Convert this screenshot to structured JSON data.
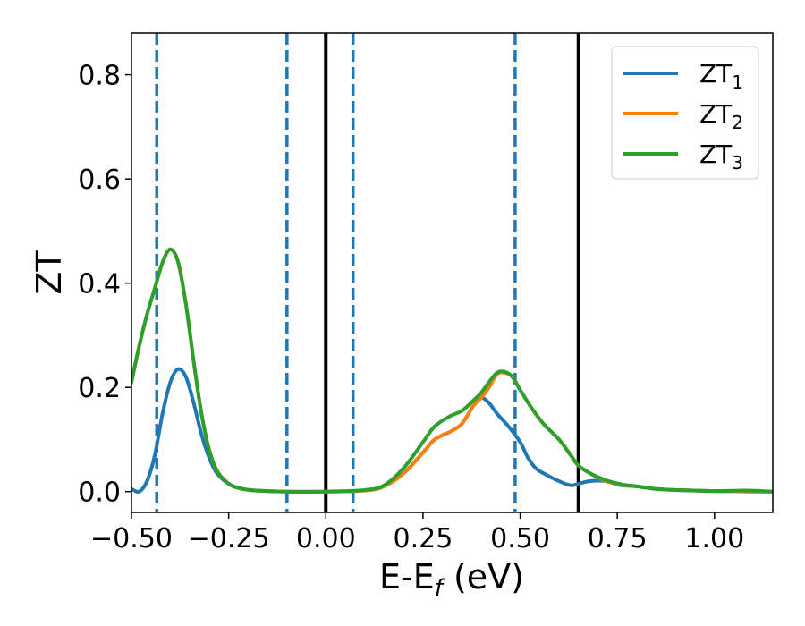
{
  "chart_data": {
    "type": "line",
    "title": "",
    "xlabel": {
      "main": "E-E",
      "sub": "f",
      "unit": " (eV)"
    },
    "ylabel": "ZT",
    "xlim": [
      -0.5,
      1.15
    ],
    "ylim": [
      -0.04,
      0.88
    ],
    "xticks": [
      -0.5,
      -0.25,
      0.0,
      0.25,
      0.5,
      0.75,
      1.0
    ],
    "xtick_labels": [
      "−0.50",
      "−0.25",
      "0.00",
      "0.25",
      "0.50",
      "0.75",
      "1.00"
    ],
    "yticks": [
      0.0,
      0.2,
      0.4,
      0.6,
      0.8
    ],
    "ytick_labels": [
      "0.0",
      "0.2",
      "0.4",
      "0.6",
      "0.8"
    ],
    "grid": false,
    "legend_position": "top-right",
    "vlines": [
      {
        "x": -0.435,
        "style": "dashed",
        "color": "#1f77b4"
      },
      {
        "x": -0.1,
        "style": "dashed",
        "color": "#1f77b4"
      },
      {
        "x": 0.0,
        "style": "solid",
        "color": "#000000"
      },
      {
        "x": 0.07,
        "style": "dashed",
        "color": "#1f77b4"
      },
      {
        "x": 0.487,
        "style": "dashed",
        "color": "#1f77b4"
      },
      {
        "x": 0.65,
        "style": "solid",
        "color": "#000000"
      }
    ],
    "series": [
      {
        "name": "ZT",
        "name_sub": "1",
        "color": "#1f77b4",
        "points": [
          [
            -0.5,
            0.005
          ],
          [
            -0.48,
            0.0
          ],
          [
            -0.46,
            0.02
          ],
          [
            -0.44,
            0.07
          ],
          [
            -0.42,
            0.15
          ],
          [
            -0.4,
            0.21
          ],
          [
            -0.38,
            0.235
          ],
          [
            -0.36,
            0.22
          ],
          [
            -0.34,
            0.17
          ],
          [
            -0.32,
            0.11
          ],
          [
            -0.3,
            0.065
          ],
          [
            -0.28,
            0.035
          ],
          [
            -0.25,
            0.015
          ],
          [
            -0.22,
            0.006
          ],
          [
            -0.18,
            0.002
          ],
          [
            -0.1,
            0.0
          ],
          [
            0.0,
            0.0
          ],
          [
            0.1,
            0.002
          ],
          [
            0.15,
            0.01
          ],
          [
            0.2,
            0.035
          ],
          [
            0.25,
            0.075
          ],
          [
            0.28,
            0.1
          ],
          [
            0.32,
            0.115
          ],
          [
            0.35,
            0.13
          ],
          [
            0.38,
            0.165
          ],
          [
            0.4,
            0.18
          ],
          [
            0.42,
            0.17
          ],
          [
            0.44,
            0.15
          ],
          [
            0.47,
            0.125
          ],
          [
            0.5,
            0.095
          ],
          [
            0.52,
            0.065
          ],
          [
            0.54,
            0.045
          ],
          [
            0.56,
            0.035
          ],
          [
            0.6,
            0.02
          ],
          [
            0.63,
            0.012
          ],
          [
            0.65,
            0.015
          ],
          [
            0.68,
            0.02
          ],
          [
            0.72,
            0.02
          ],
          [
            0.76,
            0.012
          ],
          [
            0.8,
            0.01
          ],
          [
            0.85,
            0.005
          ],
          [
            0.9,
            0.003
          ],
          [
            1.0,
            0.001
          ],
          [
            1.1,
            0.0
          ],
          [
            1.15,
            0.0
          ]
        ]
      },
      {
        "name": "ZT",
        "name_sub": "2",
        "color": "#ff7f0e",
        "points": [
          [
            -0.5,
            0.21
          ],
          [
            -0.48,
            0.28
          ],
          [
            -0.46,
            0.34
          ],
          [
            -0.44,
            0.39
          ],
          [
            -0.42,
            0.44
          ],
          [
            -0.4,
            0.465
          ],
          [
            -0.38,
            0.44
          ],
          [
            -0.36,
            0.36
          ],
          [
            -0.34,
            0.25
          ],
          [
            -0.32,
            0.15
          ],
          [
            -0.3,
            0.08
          ],
          [
            -0.28,
            0.04
          ],
          [
            -0.25,
            0.015
          ],
          [
            -0.22,
            0.006
          ],
          [
            -0.18,
            0.002
          ],
          [
            -0.1,
            0.0
          ],
          [
            0.0,
            0.0
          ],
          [
            0.1,
            0.002
          ],
          [
            0.15,
            0.01
          ],
          [
            0.2,
            0.035
          ],
          [
            0.25,
            0.075
          ],
          [
            0.28,
            0.1
          ],
          [
            0.32,
            0.115
          ],
          [
            0.35,
            0.13
          ],
          [
            0.38,
            0.165
          ],
          [
            0.4,
            0.18
          ],
          [
            0.42,
            0.2
          ],
          [
            0.44,
            0.225
          ],
          [
            0.46,
            0.228
          ],
          [
            0.48,
            0.22
          ],
          [
            0.5,
            0.195
          ],
          [
            0.53,
            0.16
          ],
          [
            0.56,
            0.13
          ],
          [
            0.6,
            0.1
          ],
          [
            0.63,
            0.07
          ],
          [
            0.65,
            0.05
          ],
          [
            0.68,
            0.035
          ],
          [
            0.72,
            0.02
          ],
          [
            0.76,
            0.013
          ],
          [
            0.8,
            0.01
          ],
          [
            0.85,
            0.005
          ],
          [
            0.9,
            0.003
          ],
          [
            1.0,
            0.001
          ],
          [
            1.1,
            0.0
          ],
          [
            1.15,
            0.0
          ]
        ]
      },
      {
        "name": "ZT",
        "name_sub": "3",
        "color": "#2ca02c",
        "points": [
          [
            -0.5,
            0.21
          ],
          [
            -0.48,
            0.28
          ],
          [
            -0.46,
            0.34
          ],
          [
            -0.44,
            0.39
          ],
          [
            -0.42,
            0.44
          ],
          [
            -0.4,
            0.465
          ],
          [
            -0.38,
            0.44
          ],
          [
            -0.36,
            0.36
          ],
          [
            -0.34,
            0.25
          ],
          [
            -0.32,
            0.15
          ],
          [
            -0.3,
            0.08
          ],
          [
            -0.28,
            0.04
          ],
          [
            -0.25,
            0.015
          ],
          [
            -0.22,
            0.006
          ],
          [
            -0.18,
            0.002
          ],
          [
            -0.1,
            0.0
          ],
          [
            0.0,
            0.0
          ],
          [
            0.1,
            0.003
          ],
          [
            0.15,
            0.012
          ],
          [
            0.2,
            0.045
          ],
          [
            0.25,
            0.095
          ],
          [
            0.28,
            0.125
          ],
          [
            0.32,
            0.145
          ],
          [
            0.35,
            0.155
          ],
          [
            0.38,
            0.175
          ],
          [
            0.4,
            0.19
          ],
          [
            0.42,
            0.21
          ],
          [
            0.44,
            0.228
          ],
          [
            0.46,
            0.23
          ],
          [
            0.48,
            0.22
          ],
          [
            0.5,
            0.195
          ],
          [
            0.53,
            0.16
          ],
          [
            0.56,
            0.13
          ],
          [
            0.6,
            0.1
          ],
          [
            0.63,
            0.07
          ],
          [
            0.65,
            0.05
          ],
          [
            0.68,
            0.035
          ],
          [
            0.72,
            0.022
          ],
          [
            0.76,
            0.014
          ],
          [
            0.8,
            0.01
          ],
          [
            0.85,
            0.005
          ],
          [
            0.9,
            0.003
          ],
          [
            1.0,
            0.001
          ],
          [
            1.08,
            0.002
          ],
          [
            1.15,
            0.0
          ]
        ]
      }
    ]
  }
}
